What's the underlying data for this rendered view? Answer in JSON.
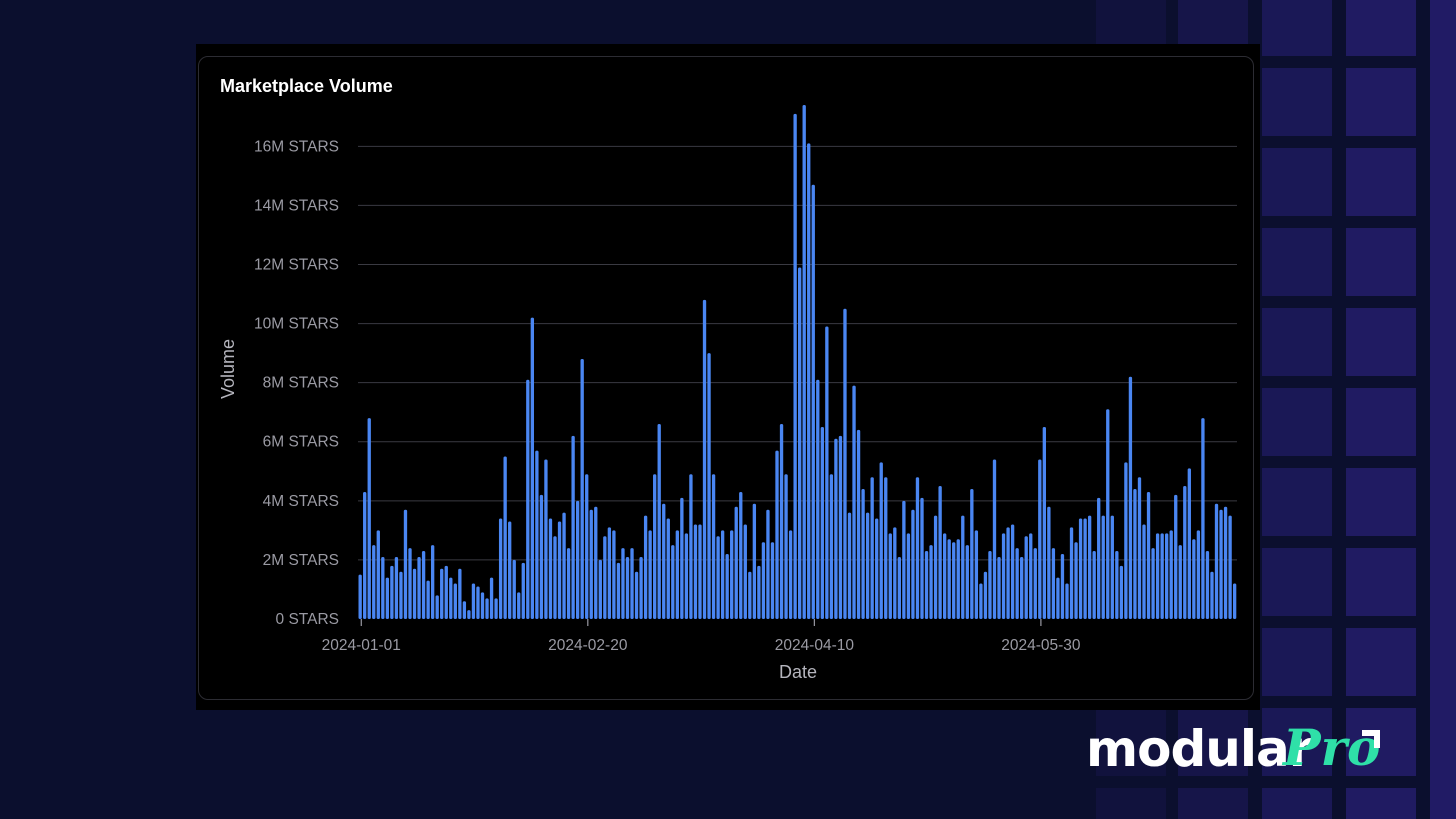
{
  "colors": {
    "background": "#0b0f2e",
    "grid_tile": "#241d6b",
    "card": "#000000",
    "bar": "#4a86f2",
    "gridline": "#3a3a42",
    "logo_accent": "#2fe0a8"
  },
  "logo": {
    "word": "modular",
    "accent_word": "Pro",
    "mark_icon": "corner-arrow-icon"
  },
  "chart_data": {
    "type": "bar",
    "title": "Marketplace Volume",
    "xlabel": "Date",
    "ylabel": "Volume",
    "x_start": "2024-01-01",
    "x_end": "2024-07-13",
    "ylim": [
      0,
      17500000
    ],
    "yticks": [
      {
        "value": 0,
        "label": "0 STARS"
      },
      {
        "value": 2000000,
        "label": "2M STARS"
      },
      {
        "value": 4000000,
        "label": "4M STARS"
      },
      {
        "value": 6000000,
        "label": "6M STARS"
      },
      {
        "value": 8000000,
        "label": "8M STARS"
      },
      {
        "value": 10000000,
        "label": "10M STARS"
      },
      {
        "value": 12000000,
        "label": "12M STARS"
      },
      {
        "value": 14000000,
        "label": "14M STARS"
      },
      {
        "value": 16000000,
        "label": "16M STARS"
      }
    ],
    "xticks": [
      "2024-01-01",
      "2024-02-20",
      "2024-04-10",
      "2024-05-30"
    ],
    "grid": true,
    "legend": "none",
    "values": [
      1.5,
      4.3,
      6.8,
      2.5,
      3.0,
      2.1,
      1.4,
      1.8,
      2.1,
      1.6,
      3.7,
      2.4,
      1.7,
      2.1,
      2.3,
      1.3,
      2.5,
      0.8,
      1.7,
      1.8,
      1.4,
      1.2,
      1.7,
      0.6,
      0.3,
      1.2,
      1.1,
      0.9,
      0.7,
      1.4,
      0.7,
      3.4,
      5.5,
      3.3,
      2.0,
      0.9,
      1.9,
      8.1,
      10.2,
      5.7,
      4.2,
      5.4,
      3.4,
      2.8,
      3.3,
      3.6,
      2.4,
      6.2,
      4.0,
      8.8,
      4.9,
      3.7,
      3.8,
      2.0,
      2.8,
      3.1,
      3.0,
      1.9,
      2.4,
      2.1,
      2.4,
      1.6,
      2.1,
      3.5,
      3.0,
      4.9,
      6.6,
      3.9,
      3.4,
      2.5,
      3.0,
      4.1,
      2.9,
      4.9,
      3.2,
      3.2,
      10.8,
      9.0,
      4.9,
      2.8,
      3.0,
      2.2,
      3.0,
      3.8,
      4.3,
      3.2,
      1.6,
      3.9,
      1.8,
      2.6,
      3.7,
      2.6,
      5.7,
      6.6,
      4.9,
      3.0,
      17.1,
      11.9,
      17.4,
      16.1,
      14.7,
      8.1,
      6.5,
      9.9,
      4.9,
      6.1,
      6.2,
      10.5,
      3.6,
      7.9,
      6.4,
      4.4,
      3.6,
      4.8,
      3.4,
      5.3,
      4.8,
      2.9,
      3.1,
      2.1,
      4.0,
      2.9,
      3.7,
      4.8,
      4.1,
      2.3,
      2.5,
      3.5,
      4.5,
      2.9,
      2.7,
      2.6,
      2.7,
      3.5,
      2.5,
      4.4,
      3.0,
      1.2,
      1.6,
      2.3,
      5.4,
      2.1,
      2.9,
      3.1,
      3.2,
      2.4,
      2.1,
      2.8,
      2.9,
      2.4,
      5.4,
      6.5,
      3.8,
      2.4,
      1.4,
      2.2,
      1.2,
      3.1,
      2.6,
      3.4,
      3.4,
      3.5,
      2.3,
      4.1,
      3.5,
      7.1,
      3.5,
      2.3,
      1.8,
      5.3,
      8.2,
      4.4,
      4.8,
      3.2,
      4.3,
      2.4,
      2.9,
      2.9,
      2.9,
      3.0,
      4.2,
      2.5,
      4.5,
      5.1,
      2.7,
      3.0,
      6.8,
      2.3,
      1.6,
      3.9,
      3.7,
      3.8,
      3.5,
      1.2
    ]
  }
}
